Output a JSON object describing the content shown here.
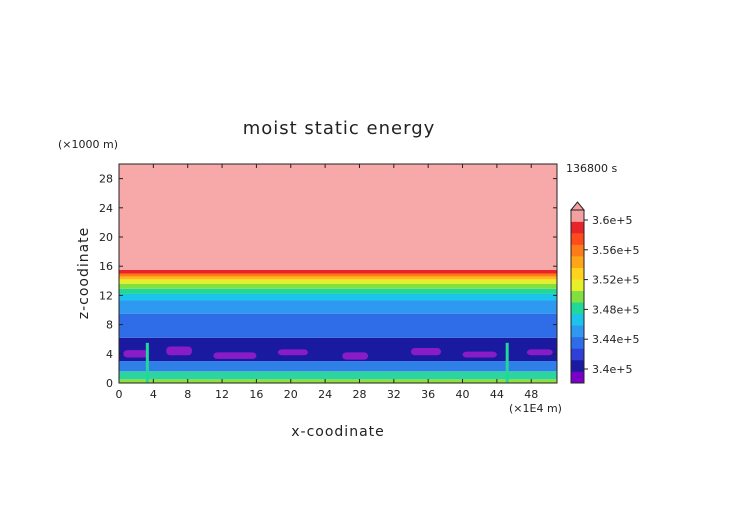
{
  "chart_data": {
    "type": "heatmap",
    "title": "moist static energy",
    "xlabel": "x-coodinate",
    "ylabel": "z-coodinate",
    "x_unit": "(×1E4 m)",
    "y_unit": "(×1000 m)",
    "time_label": "136800 s",
    "xlim": [
      0,
      51
    ],
    "ylim": [
      0,
      30
    ],
    "x_ticks": [
      0,
      4,
      8,
      12,
      16,
      20,
      24,
      28,
      32,
      36,
      40,
      44,
      48
    ],
    "y_ticks": [
      0,
      4,
      8,
      12,
      16,
      20,
      24,
      28
    ],
    "colorbar": {
      "tick_labels": [
        "3.6e+5",
        "3.56e+5",
        "3.52e+5",
        "3.48e+5",
        "3.44e+5",
        "3.4e+5"
      ],
      "colors": [
        "#7a00c8",
        "#1a1aa0",
        "#2f3fd8",
        "#2f6de8",
        "#2f98f0",
        "#1cc3ea",
        "#21d89a",
        "#7fe040",
        "#e7ef2a",
        "#ffd21c",
        "#ffa518",
        "#ff7a18",
        "#ff4b1c",
        "#e8242a",
        "#f5a0a0"
      ],
      "extend": "max"
    },
    "layers": [
      {
        "z": [
          0.0,
          0.5
        ],
        "color": "#8fe038"
      },
      {
        "z": [
          0.5,
          1.6
        ],
        "color": "#2ed4a0"
      },
      {
        "z": [
          1.6,
          3.0
        ],
        "color": "#2f7fe8"
      },
      {
        "z": [
          3.0,
          6.2
        ],
        "color": "#1a1aa0"
      },
      {
        "z": [
          6.2,
          9.5
        ],
        "color": "#2f6de8"
      },
      {
        "z": [
          9.5,
          11.3
        ],
        "color": "#2f98f0"
      },
      {
        "z": [
          11.3,
          12.2
        ],
        "color": "#1cc3ea"
      },
      {
        "z": [
          12.2,
          12.9
        ],
        "color": "#21d89a"
      },
      {
        "z": [
          12.9,
          13.6
        ],
        "color": "#7fe040"
      },
      {
        "z": [
          13.6,
          14.2
        ],
        "color": "#e7ef2a"
      },
      {
        "z": [
          14.2,
          14.6
        ],
        "color": "#ffb818"
      },
      {
        "z": [
          14.6,
          15.0
        ],
        "color": "#ff7a18"
      },
      {
        "z": [
          15.0,
          15.5
        ],
        "color": "#e8242a"
      },
      {
        "z": [
          15.5,
          30.0
        ],
        "color": "#f7a8a8"
      }
    ],
    "minimum_cells": [
      {
        "x": [
          0.5,
          3.5
        ],
        "z": [
          3.5,
          4.5
        ]
      },
      {
        "x": [
          5.5,
          8.5
        ],
        "z": [
          3.8,
          5.0
        ]
      },
      {
        "x": [
          11.0,
          16.0
        ],
        "z": [
          3.3,
          4.2
        ]
      },
      {
        "x": [
          18.5,
          22.0
        ],
        "z": [
          3.8,
          4.6
        ]
      },
      {
        "x": [
          26.0,
          29.0
        ],
        "z": [
          3.2,
          4.2
        ]
      },
      {
        "x": [
          34.0,
          37.5
        ],
        "z": [
          3.8,
          4.8
        ]
      },
      {
        "x": [
          40.0,
          44.0
        ],
        "z": [
          3.5,
          4.3
        ]
      },
      {
        "x": [
          47.5,
          50.5
        ],
        "z": [
          3.8,
          4.6
        ]
      }
    ],
    "plumes_x": [
      3.3,
      45.2
    ]
  }
}
